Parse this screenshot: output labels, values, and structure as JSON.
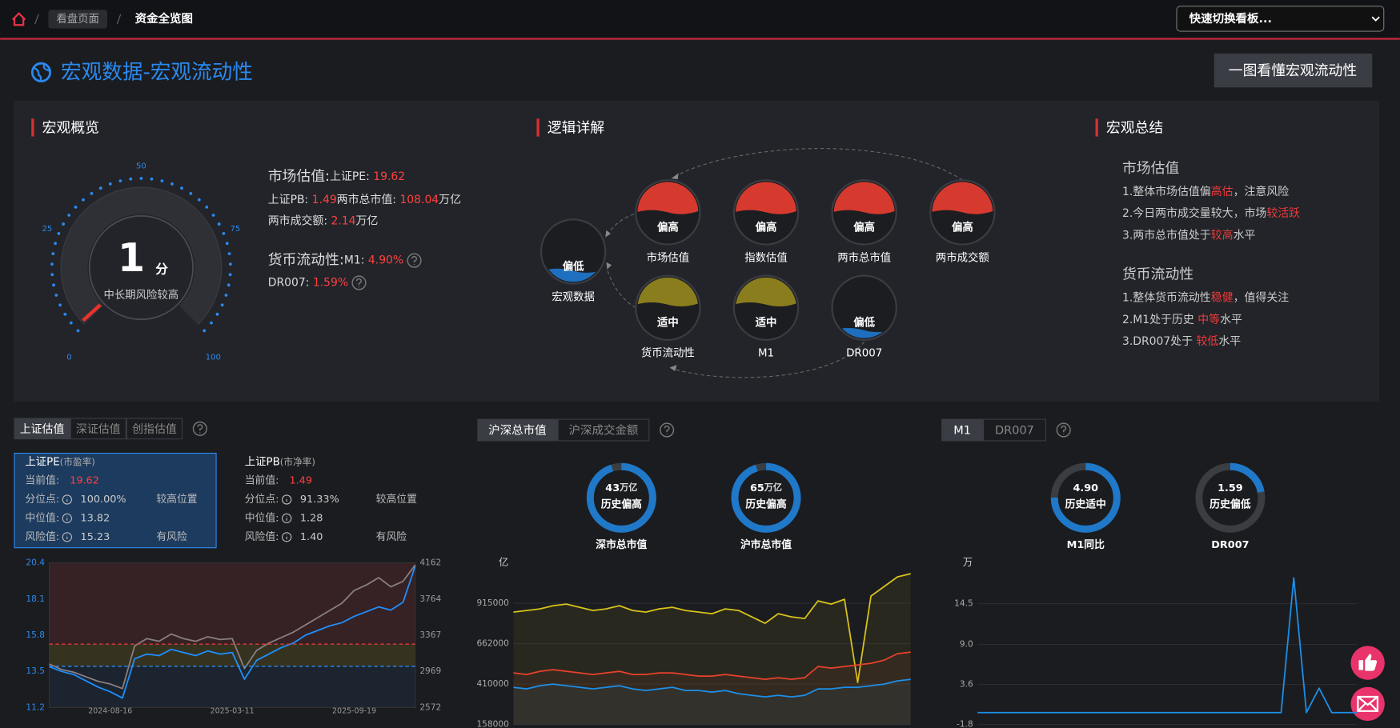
{
  "nav": {
    "crumbs": [
      "看盘页面",
      "资金全览图"
    ],
    "switch": "快速切换看板..."
  },
  "header": {
    "title": "宏观数据-宏观流动性",
    "button": "一图看懂宏观流动性"
  },
  "overview": {
    "title": "宏观概览",
    "gauge": {
      "value": 1,
      "unit": "分",
      "caption": "中长期风险较高",
      "range": [
        0,
        100
      ],
      "ticks": [
        0,
        25,
        50,
        75,
        100
      ]
    },
    "rows": [
      [
        {
          "text": "市场估值:"
        },
        {
          "text": "上证PE:"
        },
        {
          "value": "19.62"
        }
      ],
      [
        {
          "text": "上证PB:"
        },
        {
          "value": "1.49"
        },
        {
          "text": "两市总市值:"
        },
        {
          "value": "108.04"
        },
        {
          "text": "万亿"
        }
      ],
      [
        {
          "text": "两市成交额:"
        },
        {
          "value": "2.14"
        },
        {
          "text": "万亿"
        }
      ],
      [
        {
          "text": "货币流动性:"
        },
        {
          "text": "M1:"
        },
        {
          "value": "4.90%"
        }
      ],
      [
        {
          "text": "DR007:"
        },
        {
          "value": "1.59%"
        }
      ]
    ]
  },
  "logic": {
    "title": "逻辑详解",
    "nodes": [
      {
        "label": "宏观数据",
        "status": "偏低",
        "color": "#1e6fbf",
        "level": 0.2,
        "from": "bottom"
      },
      {
        "label": "市场估值",
        "status": "偏高",
        "color": "#d63a2f",
        "level": 0.5,
        "from": "top"
      },
      {
        "label": "指数估值",
        "status": "偏高",
        "color": "#d63a2f",
        "level": 0.5,
        "from": "top"
      },
      {
        "label": "两市总市值",
        "status": "偏高",
        "color": "#d63a2f",
        "level": 0.5,
        "from": "top"
      },
      {
        "label": "两市成交额",
        "status": "偏高",
        "color": "#d63a2f",
        "level": 0.5,
        "from": "top"
      },
      {
        "label": "货币流动性",
        "status": "适中",
        "color": "#8a7d1e",
        "level": 0.45,
        "from": "top"
      },
      {
        "label": "M1",
        "status": "适中",
        "color": "#8a7d1e",
        "level": 0.45,
        "from": "top"
      },
      {
        "label": "DR007",
        "status": "偏低",
        "color": "#1e6fbf",
        "level": 0.15,
        "from": "bottom"
      }
    ]
  },
  "summary": {
    "title": "宏观总结",
    "groups": [
      {
        "heading": "市场估值",
        "lines": [
          {
            "pre": "1.整体市场估值偏",
            "hl": "高估",
            "post": "，注意风险"
          },
          {
            "pre": "2.今日两市成交量较大，市场",
            "hl": "较活跃"
          },
          {
            "pre": "3.两市总市值处于",
            "hl": "较高",
            "post": "水平"
          }
        ]
      },
      {
        "heading": "货币流动性",
        "lines": [
          {
            "pre": "1.整体货币流动性",
            "hl": "稳健",
            "post": "，值得关注"
          },
          {
            "pre": "2.M1处于历史 ",
            "hl": "中等",
            "post": "水平"
          },
          {
            "pre": "3.DR007处于 ",
            "hl": "较低",
            "post": "水平"
          }
        ]
      }
    ]
  },
  "valuation": {
    "tabs": [
      "上证估值",
      "深证估值",
      "创指估值"
    ],
    "cards": [
      {
        "name": "上证PE",
        "sub": "(市盈率)",
        "rows": [
          {
            "label": "当前值:",
            "value": "19.62"
          },
          {
            "label": "分位点:",
            "value": "100.00%",
            "note": "较高位置"
          },
          {
            "label": "中位值:",
            "value": "13.82"
          },
          {
            "label": "风险值:",
            "value": "15.23",
            "note": "有风险"
          }
        ]
      },
      {
        "name": "上证PB",
        "sub": "(市净率)",
        "rows": [
          {
            "label": "当前值:",
            "value": "1.49"
          },
          {
            "label": "分位点:",
            "value": "91.33%",
            "note": "较高位置"
          },
          {
            "label": "中位值:",
            "value": "1.28"
          },
          {
            "label": "风险值:",
            "value": "1.40",
            "note": "有风险"
          }
        ]
      }
    ],
    "chart": {
      "type": "line",
      "categories": [
        null,
        null,
        null,
        null,
        null,
        "2024-08-16",
        null,
        null,
        null,
        null,
        null,
        null,
        null,
        null,
        null,
        "2025-03-11",
        null,
        null,
        null,
        null,
        null,
        null,
        null,
        null,
        null,
        "2025-09-19",
        null,
        null,
        null,
        null,
        null
      ],
      "ylim": [
        11.2,
        20.4
      ],
      "yticks": [
        11.2,
        13.5,
        15.8,
        18.1,
        20.4
      ],
      "y2lim": [
        2572,
        4162
      ],
      "y2ticks": [
        2572,
        2969,
        3367,
        3764,
        4162
      ],
      "grid": false,
      "ref_lines": [
        {
          "value": 15.23,
          "color": "#e03a3a"
        },
        {
          "value": 13.82,
          "color": "#2a8af0"
        }
      ],
      "bands": [
        "rgba(200,60,60,0.16)",
        "rgba(190,170,40,0.16)",
        "rgba(40,110,200,0.10)"
      ],
      "series": [
        {
          "color": "#1e90ff",
          "values": [
            13.8,
            13.5,
            13.3,
            12.9,
            12.5,
            12.2,
            11.8,
            14.3,
            14.6,
            14.5,
            14.9,
            14.7,
            14.5,
            14.8,
            14.6,
            14.7,
            13.0,
            14.2,
            14.6,
            15.0,
            15.3,
            15.8,
            16.1,
            16.4,
            16.6,
            17.0,
            17.3,
            17.6,
            17.4,
            17.9,
            20.2
          ]
        },
        {
          "color": "#8a7f80",
          "axis": "y2",
          "values": [
            3050,
            2990,
            2960,
            2910,
            2860,
            2830,
            2780,
            3250,
            3330,
            3300,
            3380,
            3330,
            3300,
            3350,
            3320,
            3330,
            3000,
            3200,
            3280,
            3340,
            3400,
            3480,
            3560,
            3640,
            3720,
            3860,
            3920,
            4000,
            3900,
            3960,
            4140
          ]
        }
      ]
    }
  },
  "capital": {
    "tabs": [
      "沪深总市值",
      "沪深成交金额"
    ],
    "rings": [
      {
        "value": "43",
        "unit": "万亿",
        "status": "历史偏高",
        "label": "深市总市值",
        "percent": 95
      },
      {
        "value": "65",
        "unit": "万亿",
        "status": "历史偏高",
        "label": "沪市总市值",
        "percent": 95
      }
    ],
    "chart": {
      "type": "line",
      "unit": "亿",
      "ylim": [
        158000,
        1167000
      ],
      "yticks": [
        158000,
        410000,
        662000,
        915000
      ],
      "grid": true,
      "area": true,
      "series": [
        {
          "color": "#d8c21a",
          "values": [
            860000,
            870000,
            880000,
            900000,
            910000,
            890000,
            870000,
            880000,
            900000,
            870000,
            860000,
            880000,
            890000,
            870000,
            860000,
            850000,
            880000,
            870000,
            830000,
            790000,
            850000,
            830000,
            820000,
            930000,
            910000,
            940000,
            420000,
            960000,
            1020000,
            1080000,
            1100000
          ]
        },
        {
          "color": "#e8412c",
          "values": [
            480000,
            470000,
            490000,
            500000,
            490000,
            480000,
            470000,
            480000,
            490000,
            470000,
            470000,
            480000,
            480000,
            470000,
            460000,
            460000,
            470000,
            460000,
            450000,
            440000,
            450000,
            440000,
            450000,
            520000,
            510000,
            520000,
            530000,
            540000,
            560000,
            600000,
            610000
          ]
        },
        {
          "color": "#1c8fe8",
          "values": [
            390000,
            380000,
            400000,
            410000,
            400000,
            390000,
            380000,
            390000,
            400000,
            380000,
            370000,
            380000,
            390000,
            370000,
            370000,
            360000,
            370000,
            350000,
            340000,
            330000,
            340000,
            330000,
            340000,
            380000,
            380000,
            390000,
            390000,
            400000,
            410000,
            430000,
            440000
          ]
        }
      ]
    }
  },
  "liquidity": {
    "tabs": [
      "M1",
      "DR007"
    ],
    "rings": [
      {
        "value": "4.90",
        "status": "历史适中",
        "label": "M1同比",
        "percent": 75
      },
      {
        "value": "1.59",
        "status": "历史偏低",
        "label": "DR007",
        "percent": 22
      }
    ],
    "chart": {
      "type": "line",
      "unit": "万",
      "ylim": [
        -1.8,
        20
      ],
      "yticks": [
        -1.8,
        3.6,
        {
          "value": 9,
          "label": "9.0"
        },
        14.5
      ],
      "grid": true,
      "area": false,
      "series": [
        {
          "color": "#1c8fe8",
          "values": [
            -0.2,
            -0.2,
            -0.2,
            -0.2,
            -0.2,
            -0.2,
            -0.2,
            -0.2,
            -0.2,
            -0.2,
            -0.2,
            -0.2,
            -0.2,
            -0.2,
            -0.2,
            -0.2,
            -0.2,
            -0.2,
            -0.2,
            -0.2,
            -0.2,
            -0.2,
            -0.2,
            -0.2,
            -0.2,
            18,
            -0.2,
            3.1,
            -0.2,
            -0.2,
            -0.2
          ]
        }
      ]
    }
  }
}
